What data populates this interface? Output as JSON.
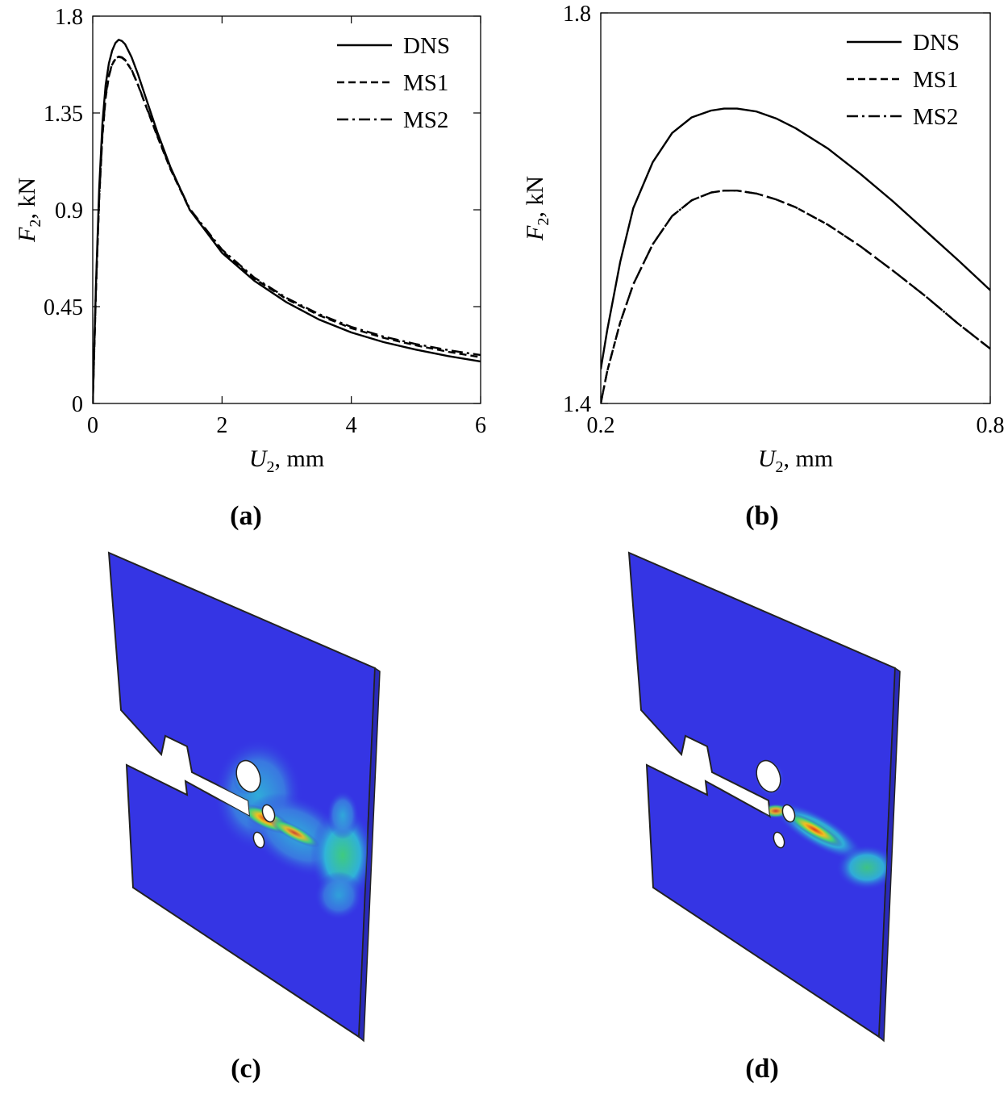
{
  "panels": {
    "a": "(a)",
    "b": "(b)",
    "c": "(c)",
    "d": "(d)"
  },
  "axes": {
    "x_var": "U",
    "x_sub": "2",
    "x_unit": ", mm",
    "y_var": "F",
    "y_sub": "2",
    "y_unit": ", kN"
  },
  "legend": {
    "dns": "DNS",
    "ms1": "MS1",
    "ms2": "MS2"
  },
  "colors": {
    "plate_base": "#3535e4",
    "plate_edge": "#2a2ab8",
    "hot": "#e13a1c",
    "warm": "#f0c020",
    "mid": "#3fd27a",
    "cool": "#2fb8d8"
  },
  "chart_data": [
    {
      "type": "line",
      "panel": "(a)",
      "xlabel": "U2, mm",
      "ylabel": "F2, kN",
      "xlim": [
        0,
        6
      ],
      "ylim": [
        0,
        1.8
      ],
      "xticks": [
        "0",
        "2",
        "4",
        "6"
      ],
      "xtick_values": [
        0,
        2,
        4,
        6
      ],
      "yticks": [
        "0",
        "0.45",
        "0.9",
        "1.35",
        "1.8"
      ],
      "ytick_values": [
        0,
        0.45,
        0.9,
        1.35,
        1.8
      ],
      "legend_position": "top-right",
      "series": [
        {
          "name": "DNS",
          "dash": "solid",
          "x": [
            0,
            0.05,
            0.1,
            0.15,
            0.2,
            0.25,
            0.3,
            0.35,
            0.4,
            0.45,
            0.5,
            0.6,
            0.7,
            0.8,
            1.0,
            1.2,
            1.5,
            2.0,
            2.5,
            3.0,
            3.5,
            4.0,
            4.5,
            5.0,
            5.5,
            6.0
          ],
          "y": [
            0,
            0.55,
            1.0,
            1.3,
            1.48,
            1.58,
            1.64,
            1.675,
            1.69,
            1.685,
            1.67,
            1.61,
            1.53,
            1.44,
            1.26,
            1.1,
            0.9,
            0.7,
            0.57,
            0.47,
            0.39,
            0.33,
            0.285,
            0.25,
            0.22,
            0.195
          ]
        },
        {
          "name": "MS1",
          "dash": "dashed",
          "x": [
            0,
            0.05,
            0.1,
            0.15,
            0.2,
            0.25,
            0.3,
            0.35,
            0.4,
            0.45,
            0.5,
            0.6,
            0.7,
            0.8,
            1.0,
            1.2,
            1.5,
            2.0,
            2.5,
            3.0,
            3.5,
            4.0,
            4.5,
            5.0,
            5.5,
            6.0
          ],
          "y": [
            0,
            0.52,
            0.95,
            1.24,
            1.42,
            1.52,
            1.575,
            1.6,
            1.61,
            1.607,
            1.595,
            1.55,
            1.48,
            1.4,
            1.24,
            1.09,
            0.9,
            0.71,
            0.58,
            0.485,
            0.41,
            0.35,
            0.305,
            0.27,
            0.24,
            0.215
          ]
        },
        {
          "name": "MS2",
          "dash": "dashdot",
          "x": [
            0,
            0.05,
            0.1,
            0.15,
            0.2,
            0.25,
            0.3,
            0.35,
            0.4,
            0.45,
            0.5,
            0.6,
            0.7,
            0.8,
            1.0,
            1.2,
            1.5,
            2.0,
            2.5,
            3.0,
            3.5,
            4.0,
            4.5,
            5.0,
            5.5,
            6.0
          ],
          "y": [
            0,
            0.53,
            0.96,
            1.25,
            1.43,
            1.525,
            1.578,
            1.602,
            1.612,
            1.609,
            1.597,
            1.552,
            1.482,
            1.402,
            1.245,
            1.095,
            0.905,
            0.715,
            0.585,
            0.49,
            0.415,
            0.356,
            0.311,
            0.276,
            0.248,
            0.225
          ]
        }
      ]
    },
    {
      "type": "line",
      "panel": "(b)",
      "xlabel": "U2, mm",
      "ylabel": "F2, kN",
      "xlim": [
        0.2,
        0.8
      ],
      "ylim": [
        1.4,
        1.8
      ],
      "xticks": [
        "0.2",
        "0.8"
      ],
      "xtick_values": [
        0.2,
        0.8
      ],
      "yticks": [
        "1.4",
        "1.8"
      ],
      "ytick_values": [
        1.4,
        1.8
      ],
      "legend_position": "top-right",
      "series": [
        {
          "name": "DNS",
          "dash": "solid",
          "x": [
            0.2,
            0.21,
            0.23,
            0.25,
            0.28,
            0.31,
            0.34,
            0.37,
            0.39,
            0.41,
            0.44,
            0.47,
            0.5,
            0.55,
            0.6,
            0.65,
            0.7,
            0.75,
            0.8
          ],
          "y": [
            1.435,
            1.475,
            1.545,
            1.6,
            1.647,
            1.677,
            1.693,
            1.7,
            1.702,
            1.702,
            1.699,
            1.692,
            1.682,
            1.661,
            1.635,
            1.607,
            1.577,
            1.547,
            1.516
          ]
        },
        {
          "name": "MS1",
          "dash": "dashed",
          "x": [
            0.2,
            0.21,
            0.23,
            0.25,
            0.28,
            0.31,
            0.34,
            0.37,
            0.39,
            0.41,
            0.44,
            0.47,
            0.5,
            0.55,
            0.6,
            0.65,
            0.7,
            0.75,
            0.8
          ],
          "y": [
            1.4,
            1.433,
            1.483,
            1.522,
            1.563,
            1.592,
            1.608,
            1.616,
            1.618,
            1.618,
            1.615,
            1.609,
            1.601,
            1.583,
            1.561,
            1.536,
            1.51,
            1.482,
            1.456
          ]
        },
        {
          "name": "MS2",
          "dash": "dashdot",
          "x": [
            0.2,
            0.21,
            0.23,
            0.25,
            0.28,
            0.31,
            0.34,
            0.37,
            0.39,
            0.41,
            0.44,
            0.47,
            0.5,
            0.55,
            0.6,
            0.65,
            0.7,
            0.75,
            0.8
          ],
          "y": [
            1.4,
            1.433,
            1.483,
            1.522,
            1.563,
            1.592,
            1.608,
            1.616,
            1.618,
            1.618,
            1.615,
            1.609,
            1.601,
            1.583,
            1.561,
            1.536,
            1.51,
            1.482,
            1.456
          ]
        }
      ]
    }
  ]
}
